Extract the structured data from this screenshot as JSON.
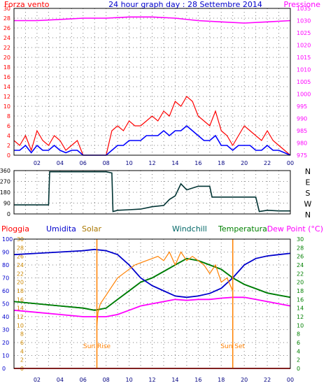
{
  "header": {
    "left_label": "Forza vento",
    "title": "24 hour graph day : 28 Settembre 2014",
    "right_label": "Pressione"
  },
  "colors": {
    "wind_speed": "#ff0000",
    "wind_avg": "#0000ff",
    "pressure": "#ff00ff",
    "direction": "#003333",
    "rain": "#ff0000",
    "humidity": "#0000cc",
    "solar": "#ff8000",
    "windchill": "#006666",
    "temperature": "#008000",
    "dewpoint": "#ff00ff",
    "axis_left_top": "#ff0000",
    "axis_right_top": "#ff00ff",
    "axis_left_bottom": "#0000cc",
    "axis_right_bottom": "#008000",
    "grid": "#808080",
    "background": "#ffffff"
  },
  "x_tick_labels": [
    "02",
    "04",
    "06",
    "08",
    "10",
    "12",
    "14",
    "16",
    "18",
    "20",
    "22",
    "00"
  ],
  "direction_labels": [
    "N",
    "W",
    "S",
    "E",
    "N"
  ],
  "bottom_legend": {
    "rain": "Pioggia",
    "humidity": "Umidita",
    "solar": "Solar",
    "windchill": "Windchill",
    "temperature": "Temperatura",
    "dewpoint": "Dew Point (°C)"
  },
  "annotations": {
    "sun_rise": "Sun Rise",
    "sun_set": "Sun Set"
  },
  "chart_data": [
    {
      "type": "line",
      "panel": "wind-pressure",
      "x_unit": "hour",
      "xlim": [
        0,
        24
      ],
      "y_left": {
        "label": "Forza vento",
        "ylim": [
          0,
          30
        ],
        "ticks": [
          0,
          2,
          4,
          6,
          8,
          10,
          12,
          14,
          16,
          18,
          20,
          22,
          24,
          26,
          28,
          30
        ]
      },
      "y_right": {
        "label": "Pressione",
        "ylim": [
          975,
          1035
        ],
        "ticks": [
          975,
          980,
          985,
          990,
          995,
          1000,
          1005,
          1010,
          1015,
          1020,
          1025,
          1030,
          1035
        ]
      },
      "grid": true,
      "series": [
        {
          "key": "wind_speed",
          "axis": "left",
          "x": [
            0,
            0.5,
            1,
            1.5,
            2,
            2.5,
            3,
            3.5,
            4,
            4.5,
            5,
            5.5,
            6,
            6.5,
            7,
            7.5,
            8,
            8.5,
            9,
            9.5,
            10,
            10.5,
            11,
            11.5,
            12,
            12.5,
            13,
            13.5,
            14,
            14.5,
            15,
            15.5,
            16,
            16.5,
            17,
            17.5,
            18,
            18.5,
            19,
            19.5,
            20,
            20.5,
            21,
            21.5,
            22,
            22.5,
            23,
            23.5,
            24
          ],
          "y": [
            3,
            2,
            4,
            1,
            5,
            3,
            2,
            4,
            3,
            1,
            2,
            3,
            0,
            0,
            0,
            0,
            0,
            5,
            6,
            5,
            7,
            6,
            6,
            7,
            8,
            7,
            9,
            8,
            11,
            10,
            12,
            11,
            8,
            7,
            6,
            9,
            5,
            4,
            2,
            4,
            6,
            5,
            4,
            3,
            5,
            3,
            2,
            1,
            0
          ]
        },
        {
          "key": "wind_avg",
          "axis": "left",
          "x": [
            0,
            0.5,
            1,
            1.5,
            2,
            2.5,
            3,
            3.5,
            4,
            4.5,
            5,
            5.5,
            6,
            6.5,
            7,
            7.5,
            8,
            8.5,
            9,
            9.5,
            10,
            10.5,
            11,
            11.5,
            12,
            12.5,
            13,
            13.5,
            14,
            14.5,
            15,
            15.5,
            16,
            16.5,
            17,
            17.5,
            18,
            18.5,
            19,
            19.5,
            20,
            20.5,
            21,
            21.5,
            22,
            22.5,
            23,
            23.5,
            24
          ],
          "y": [
            1,
            1,
            2,
            0.5,
            2,
            1,
            1,
            2,
            1,
            0.5,
            1,
            1,
            0,
            0,
            0,
            0,
            0,
            1,
            2,
            2,
            3,
            3,
            3,
            4,
            4,
            4,
            5,
            4,
            5,
            5,
            6,
            5,
            4,
            3,
            3,
            4,
            2,
            2,
            1,
            2,
            2,
            2,
            1,
            1,
            2,
            1,
            1,
            0.5,
            0
          ]
        },
        {
          "key": "pressure",
          "axis": "right",
          "x": [
            0,
            2,
            4,
            6,
            8,
            10,
            12,
            14,
            16,
            18,
            20,
            22,
            24
          ],
          "y": [
            1030,
            1030,
            1030.5,
            1031,
            1031,
            1031.5,
            1031.5,
            1031,
            1030,
            1029.5,
            1029,
            1029.5,
            1030
          ]
        }
      ]
    },
    {
      "type": "line",
      "panel": "wind-direction",
      "x_unit": "hour",
      "xlim": [
        0,
        24
      ],
      "y_left": {
        "ylim": [
          0,
          360
        ],
        "ticks": [
          0,
          90,
          180,
          270,
          360
        ]
      },
      "grid": true,
      "series": [
        {
          "key": "direction",
          "x": [
            0,
            1,
            2,
            3,
            3.1,
            5,
            7,
            8,
            8.5,
            8.6,
            9,
            10,
            11,
            12,
            13,
            13.5,
            14,
            14.5,
            15,
            16,
            17,
            17.2,
            19,
            20,
            21,
            21.3,
            22,
            23,
            24
          ],
          "y": [
            75,
            75,
            75,
            75,
            350,
            350,
            350,
            350,
            340,
            20,
            30,
            35,
            40,
            60,
            70,
            120,
            150,
            250,
            200,
            230,
            230,
            140,
            140,
            140,
            140,
            20,
            30,
            25,
            25
          ]
        }
      ]
    },
    {
      "type": "line",
      "panel": "weather",
      "x_unit": "hour",
      "xlim": [
        0,
        24
      ],
      "y_left": {
        "ylim": [
          0,
          100
        ],
        "ticks": [
          0,
          10,
          20,
          30,
          40,
          50,
          60,
          70,
          80,
          90,
          100
        ]
      },
      "y_inner_left": {
        "ylim": [
          0,
          30
        ],
        "ticks": [
          0,
          2,
          4,
          6,
          8,
          10,
          12,
          14,
          16,
          18,
          20,
          22,
          24,
          26,
          28,
          30
        ]
      },
      "y_right": {
        "ylim": [
          0,
          30
        ],
        "ticks": [
          0,
          2,
          4,
          6,
          8,
          10,
          12,
          14,
          16,
          18,
          20,
          22,
          24,
          26,
          28,
          30
        ]
      },
      "grid": true,
      "series": [
        {
          "key": "rain",
          "axis": "left",
          "x": [
            0,
            24
          ],
          "y": [
            0,
            0
          ]
        },
        {
          "key": "humidity",
          "axis": "left",
          "x": [
            0,
            2,
            4,
            6,
            7,
            8,
            9,
            10,
            11,
            12,
            13,
            14,
            15,
            16,
            17,
            18,
            19,
            20,
            21,
            22,
            23,
            24
          ],
          "y": [
            88,
            89,
            90,
            91,
            92,
            91,
            88,
            80,
            70,
            64,
            60,
            56,
            55,
            56,
            58,
            62,
            70,
            80,
            85,
            87,
            88,
            89
          ]
        },
        {
          "key": "solar",
          "axis": "inner_left",
          "x": [
            7.2,
            7.3,
            7.5,
            8,
            8.5,
            9,
            9.5,
            10,
            10.5,
            11,
            11.5,
            12,
            12.5,
            13,
            13.5,
            14,
            14.5,
            15,
            15.5,
            16,
            16.5,
            17,
            17.5,
            18,
            18.5,
            19
          ],
          "y": [
            10,
            13,
            15,
            17,
            19,
            21,
            22,
            23,
            24,
            24.5,
            25,
            25.5,
            26,
            25,
            27,
            24,
            27,
            25,
            26,
            25,
            24,
            22,
            24,
            20,
            21,
            18
          ]
        },
        {
          "key": "windchill",
          "axis": "right",
          "x": [
            0,
            2,
            4,
            6,
            7,
            8,
            9,
            10,
            11,
            12,
            13,
            14,
            15,
            16,
            17,
            18,
            19,
            20,
            21,
            22,
            23,
            24
          ],
          "y": [
            15.5,
            15,
            14.5,
            14,
            13.5,
            14,
            16,
            18,
            20,
            21,
            22.5,
            24,
            25.5,
            25,
            24,
            23,
            21,
            19.5,
            18.5,
            17.5,
            17,
            16.5
          ]
        },
        {
          "key": "temperature",
          "axis": "right",
          "x": [
            0,
            2,
            4,
            6,
            7,
            8,
            9,
            10,
            11,
            12,
            13,
            14,
            15,
            16,
            17,
            18,
            19,
            20,
            21,
            22,
            23,
            24
          ],
          "y": [
            15.5,
            15,
            14.5,
            14,
            13.5,
            14,
            16,
            18,
            20,
            21,
            22.5,
            24,
            25.5,
            25,
            24,
            23,
            21,
            19.5,
            18.5,
            17.5,
            17,
            16.5
          ]
        },
        {
          "key": "dewpoint",
          "axis": "right",
          "x": [
            0,
            2,
            4,
            6,
            7,
            8,
            9,
            10,
            11,
            12,
            13,
            14,
            15,
            16,
            17,
            18,
            19,
            20,
            21,
            22,
            23,
            24
          ],
          "y": [
            13.5,
            13,
            12.5,
            12,
            12,
            12,
            12.5,
            13.5,
            14.5,
            15,
            15.5,
            16,
            15.8,
            16,
            16,
            16.3,
            16.5,
            16.5,
            16,
            15.5,
            15,
            14.5
          ]
        }
      ],
      "events": [
        {
          "label_key": "sun_rise",
          "x": 7.2
        },
        {
          "label_key": "sun_set",
          "x": 19.0
        }
      ]
    }
  ]
}
